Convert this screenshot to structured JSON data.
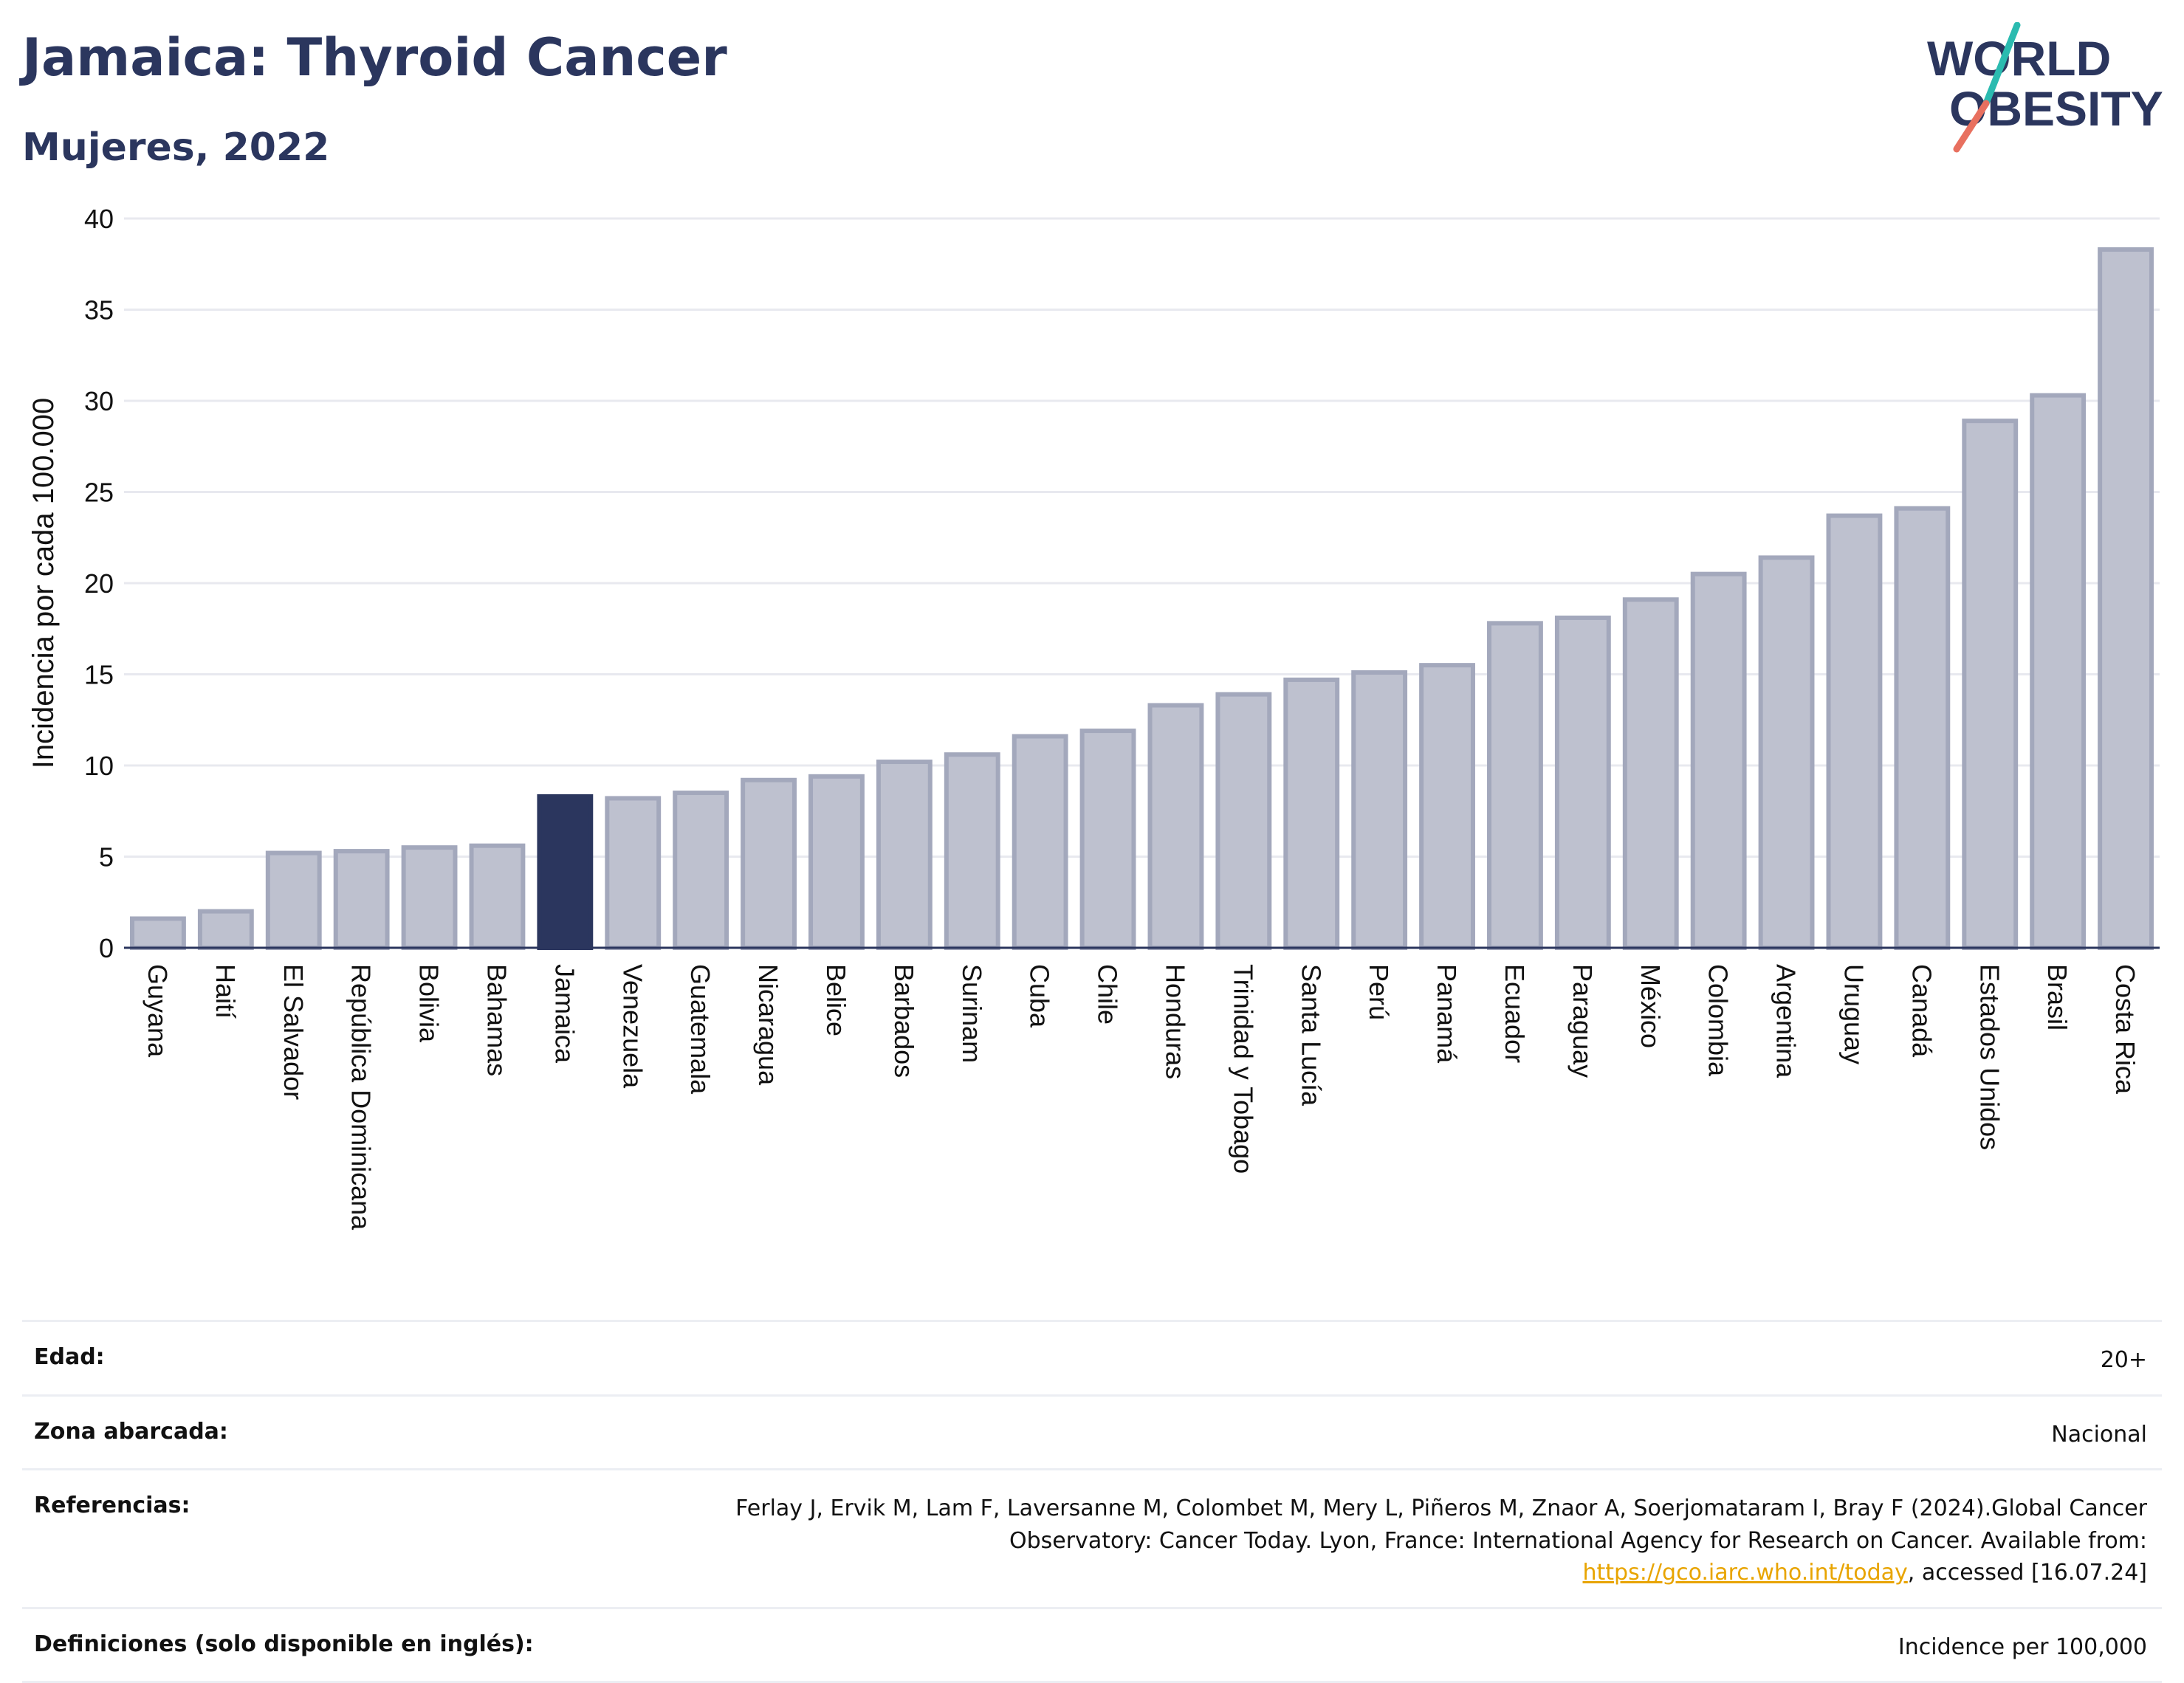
{
  "header": {
    "title": "Jamaica: Thyroid Cancer",
    "subtitle": "Mujeres, 2022"
  },
  "logo": {
    "line1": "WORLD",
    "line2": "OBESITY",
    "slash_colors": [
      "#2bbbb0",
      "#e8705f"
    ],
    "text_color": "#2b365e"
  },
  "chart_data": {
    "type": "bar",
    "title": "Jamaica: Thyroid Cancer",
    "subtitle": "Mujeres, 2022",
    "xlabel": "",
    "ylabel": "Incidencia por cada 100.000",
    "ylim": [
      0,
      40
    ],
    "yticks": [
      0,
      5,
      10,
      15,
      20,
      25,
      30,
      35,
      40
    ],
    "grid": true,
    "highlight_category": "Jamaica",
    "colors": {
      "bar": "#bec1cf",
      "bar_edge": "#a3a8bc",
      "highlight": "#2b365e",
      "grid": "#e8e9ef",
      "axis": "#2b365e"
    },
    "categories": [
      "Guyana",
      "Haití",
      "El Salvador",
      "República Dominicana",
      "Bolivia",
      "Bahamas",
      "Jamaica",
      "Venezuela",
      "Guatemala",
      "Nicaragua",
      "Belice",
      "Barbados",
      "Surinam",
      "Cuba",
      "Chile",
      "Honduras",
      "Trinidad y Tobago",
      "Santa Lucía",
      "Perú",
      "Panamá",
      "Ecuador",
      "Paraguay",
      "México",
      "Colombia",
      "Argentina",
      "Uruguay",
      "Canadá",
      "Estados Unidos",
      "Brasil",
      "Costa Rica"
    ],
    "values": [
      1.6,
      2.0,
      5.2,
      5.3,
      5.5,
      5.6,
      8.3,
      8.2,
      8.5,
      9.2,
      9.4,
      10.2,
      10.6,
      11.6,
      11.9,
      13.3,
      13.9,
      14.7,
      15.1,
      15.5,
      17.8,
      18.1,
      19.1,
      20.5,
      21.4,
      23.7,
      24.1,
      28.9,
      30.3,
      38.3
    ]
  },
  "metadata_table": {
    "rows": [
      {
        "label": "Edad:",
        "value": "20+"
      },
      {
        "label": "Zona abarcada:",
        "value": "Nacional"
      },
      {
        "label": "Referencias:",
        "value_pre": "Ferlay J, Ervik M, Lam F, Laversanne M, Colombet M, Mery L, Piñeros M, Znaor A, Soerjomataram I, Bray F (2024).Global Cancer Observatory: Cancer Today. Lyon, France: International Agency for Research on Cancer. Available from: ",
        "link": "https://gco.iarc.who.int/today",
        "value_post": ", accessed [16.07.24]"
      },
      {
        "label": "Definiciones (solo disponible en inglés):",
        "value": "Incidence per 100,000"
      }
    ]
  }
}
